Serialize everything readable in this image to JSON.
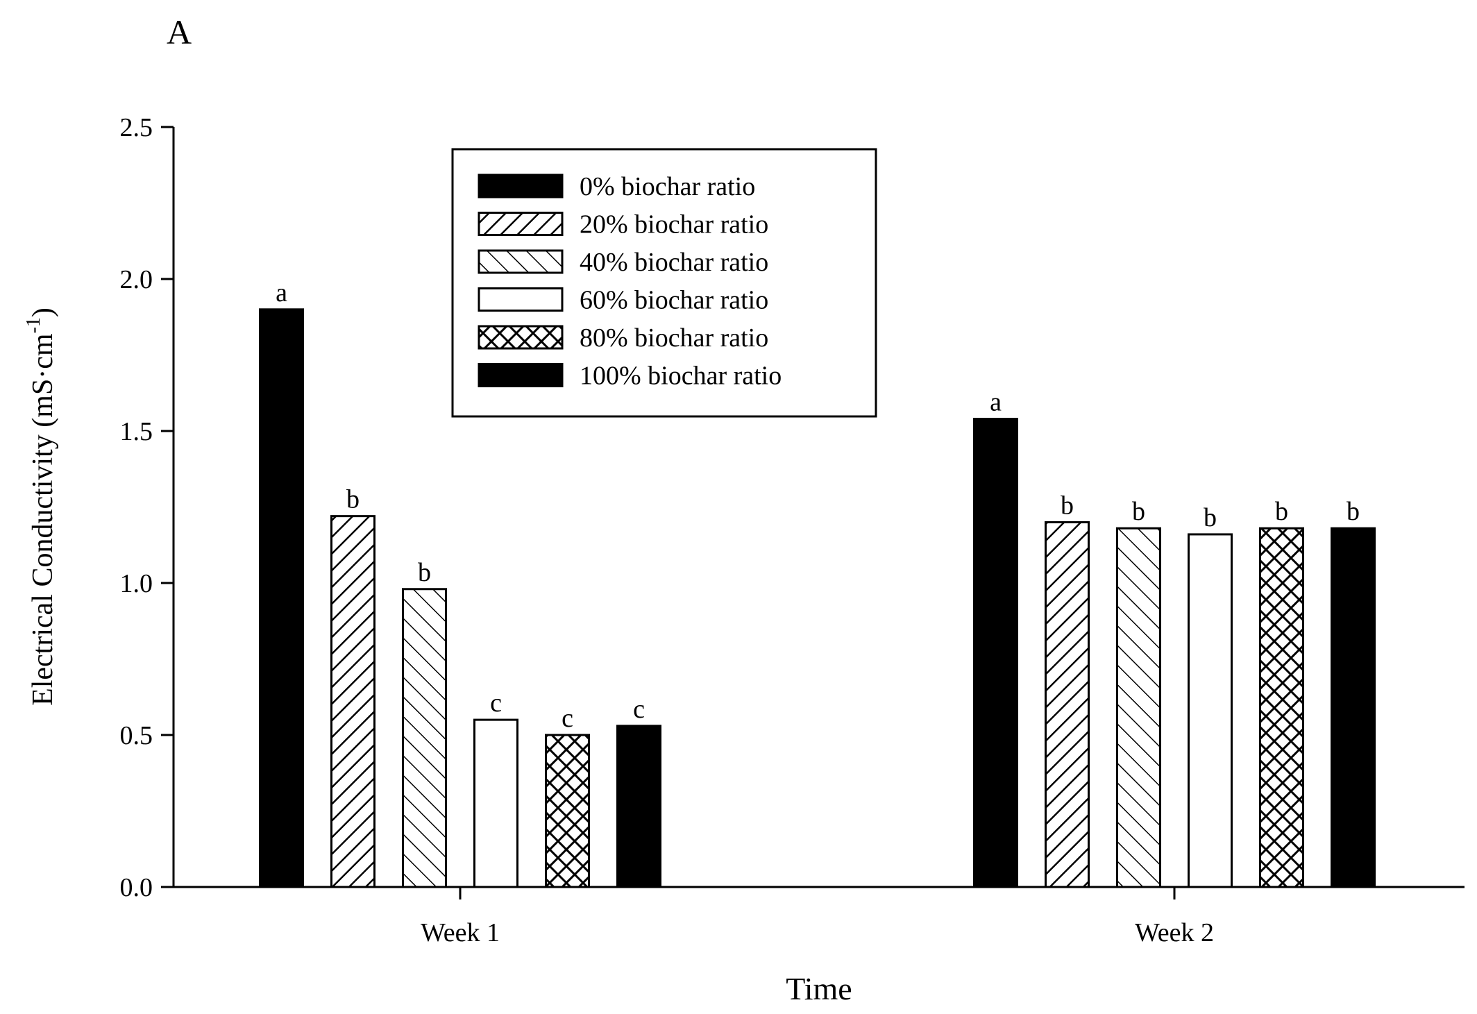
{
  "chart_data": {
    "type": "bar",
    "panel_label": "A",
    "title": "",
    "xlabel": "Time",
    "ylabel": "Electrical Conductivity (mS·cm",
    "ylabel_superscript": "-1",
    "ylabel_close": ")",
    "categories": [
      "Week 1",
      "Week 2"
    ],
    "ylim": [
      0,
      2.5
    ],
    "yticks": [
      0.0,
      0.5,
      1.0,
      1.5,
      2.0,
      2.5
    ],
    "ytick_labels": [
      "0.0",
      "0.5",
      "1.0",
      "1.5",
      "2.0",
      "2.5"
    ],
    "series": [
      {
        "name": "0% biochar ratio",
        "pattern": "solid-black",
        "values": [
          1.9,
          1.54
        ],
        "letters": [
          "a",
          "a"
        ]
      },
      {
        "name": "20% biochar ratio",
        "pattern": "hatch-forward",
        "values": [
          1.22,
          1.2
        ],
        "letters": [
          "b",
          "b"
        ]
      },
      {
        "name": "40% biochar ratio",
        "pattern": "hatch-back",
        "values": [
          0.98,
          1.18
        ],
        "letters": [
          "b",
          "b"
        ]
      },
      {
        "name": "60% biochar ratio",
        "pattern": "white",
        "values": [
          0.55,
          1.16
        ],
        "letters": [
          "c",
          "b"
        ]
      },
      {
        "name": "80% biochar ratio",
        "pattern": "crosshatch",
        "values": [
          0.5,
          1.18
        ],
        "letters": [
          "c",
          "b"
        ]
      },
      {
        "name": "100% biochar ratio",
        "pattern": "solid-black",
        "values": [
          0.53,
          1.18
        ],
        "letters": [
          "c",
          "b"
        ]
      }
    ],
    "legend_position": "top-center"
  }
}
